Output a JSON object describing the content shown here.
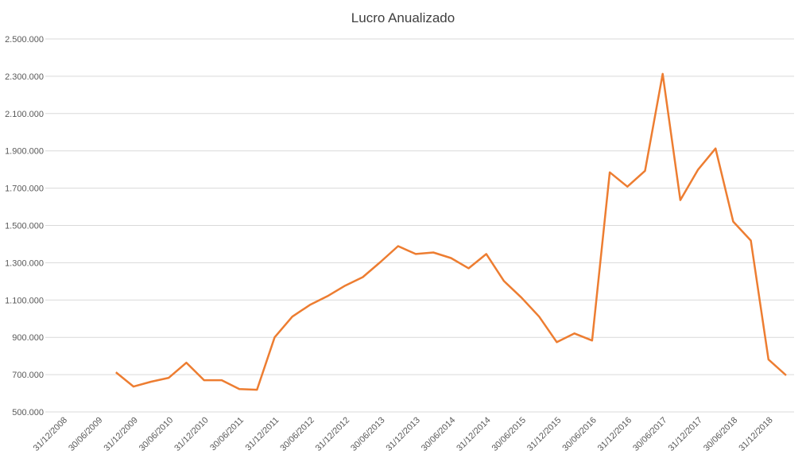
{
  "chart_data": {
    "type": "line",
    "title": "Lucro Anualizado",
    "categories": [
      null,
      "31/12/2008",
      null,
      "30/06/2009",
      null,
      "31/12/2009",
      null,
      "30/06/2010",
      null,
      "31/12/2010",
      null,
      "30/06/2011",
      null,
      "31/12/2011",
      null,
      "30/06/2012",
      null,
      "31/12/2012",
      null,
      "30/06/2013",
      null,
      "31/12/2013",
      null,
      "30/06/2014",
      null,
      "31/12/2014",
      null,
      "30/06/2015",
      null,
      "31/12/2015",
      null,
      "30/06/2016",
      null,
      "31/12/2016",
      null,
      "30/06/2017",
      null,
      "31/12/2017",
      null,
      "30/06/2018",
      null,
      "31/12/2018",
      null
    ],
    "series": [
      {
        "color": "#ed7d31",
        "values": [
          null,
          null,
          null,
          null,
          713000,
          636000,
          662000,
          683000,
          764000,
          670000,
          670000,
          623000,
          619000,
          900000,
          1011000,
          1074000,
          1121000,
          1177000,
          1223000,
          1304000,
          1389000,
          1347000,
          1355000,
          1325000,
          1270000,
          1347000,
          1202000,
          1113000,
          1011000,
          874000,
          921000,
          883000,
          1785000,
          1708000,
          1793000,
          2313000,
          1636000,
          1798000,
          1913000,
          1521000,
          1419000,
          781000,
          696000
        ]
      }
    ],
    "ylim": [
      500000,
      2500000
    ],
    "yticks": [
      {
        "value": 500000,
        "label": "500.000"
      },
      {
        "value": 700000,
        "label": "700.000"
      },
      {
        "value": 900000,
        "label": "900.000"
      },
      {
        "value": 1100000,
        "label": "1.100.000"
      },
      {
        "value": 1300000,
        "label": "1.300.000"
      },
      {
        "value": 1500000,
        "label": "1.500.000"
      },
      {
        "value": 1700000,
        "label": "1.700.000"
      },
      {
        "value": 1900000,
        "label": "1.900.000"
      },
      {
        "value": 2100000,
        "label": "2.100.000"
      },
      {
        "value": 2300000,
        "label": "2.300.000"
      },
      {
        "value": 2500000,
        "label": "2.500.000"
      }
    ],
    "grid": true
  }
}
